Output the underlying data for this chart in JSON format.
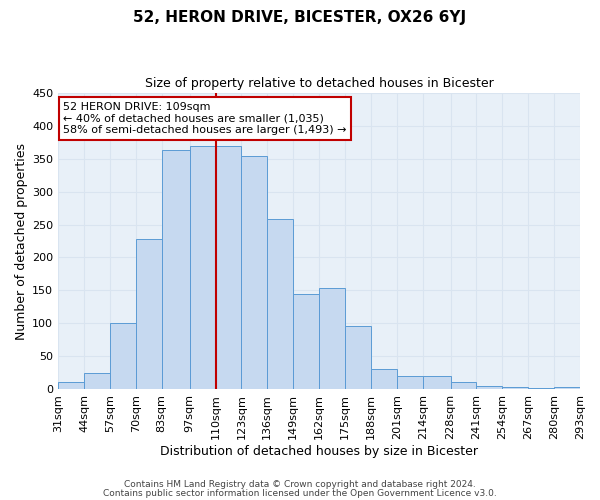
{
  "title": "52, HERON DRIVE, BICESTER, OX26 6YJ",
  "subtitle": "Size of property relative to detached houses in Bicester",
  "xlabel": "Distribution of detached houses by size in Bicester",
  "ylabel": "Number of detached properties",
  "bin_labels": [
    "31sqm",
    "44sqm",
    "57sqm",
    "70sqm",
    "83sqm",
    "97sqm",
    "110sqm",
    "123sqm",
    "136sqm",
    "149sqm",
    "162sqm",
    "175sqm",
    "188sqm",
    "201sqm",
    "214sqm",
    "228sqm",
    "241sqm",
    "254sqm",
    "267sqm",
    "280sqm",
    "293sqm"
  ],
  "bar_heights": [
    10,
    25,
    100,
    228,
    363,
    370,
    370,
    355,
    258,
    145,
    153,
    96,
    31,
    19,
    19,
    10,
    4,
    3,
    1,
    3
  ],
  "bin_edges": [
    31,
    44,
    57,
    70,
    83,
    97,
    110,
    123,
    136,
    149,
    162,
    175,
    188,
    201,
    214,
    228,
    241,
    254,
    267,
    280,
    293
  ],
  "bar_color": "#c6d9f0",
  "bar_edge_color": "#5b9bd5",
  "vline_x": 110,
  "vline_color": "#c00000",
  "ylim": [
    0,
    450
  ],
  "yticks": [
    0,
    50,
    100,
    150,
    200,
    250,
    300,
    350,
    400,
    450
  ],
  "annotation_title": "52 HERON DRIVE: 109sqm",
  "annotation_line1": "← 40% of detached houses are smaller (1,035)",
  "annotation_line2": "58% of semi-detached houses are larger (1,493) →",
  "annotation_box_color": "#ffffff",
  "annotation_box_edge": "#c00000",
  "footnote1": "Contains HM Land Registry data © Crown copyright and database right 2024.",
  "footnote2": "Contains public sector information licensed under the Open Government Licence v3.0.",
  "grid_color": "#d9e4f0",
  "bg_color": "#e8f0f8",
  "title_fontsize": 11,
  "subtitle_fontsize": 9,
  "ylabel_fontsize": 9,
  "xlabel_fontsize": 9,
  "tick_fontsize": 8,
  "annot_fontsize": 8,
  "footnote_fontsize": 6.5
}
